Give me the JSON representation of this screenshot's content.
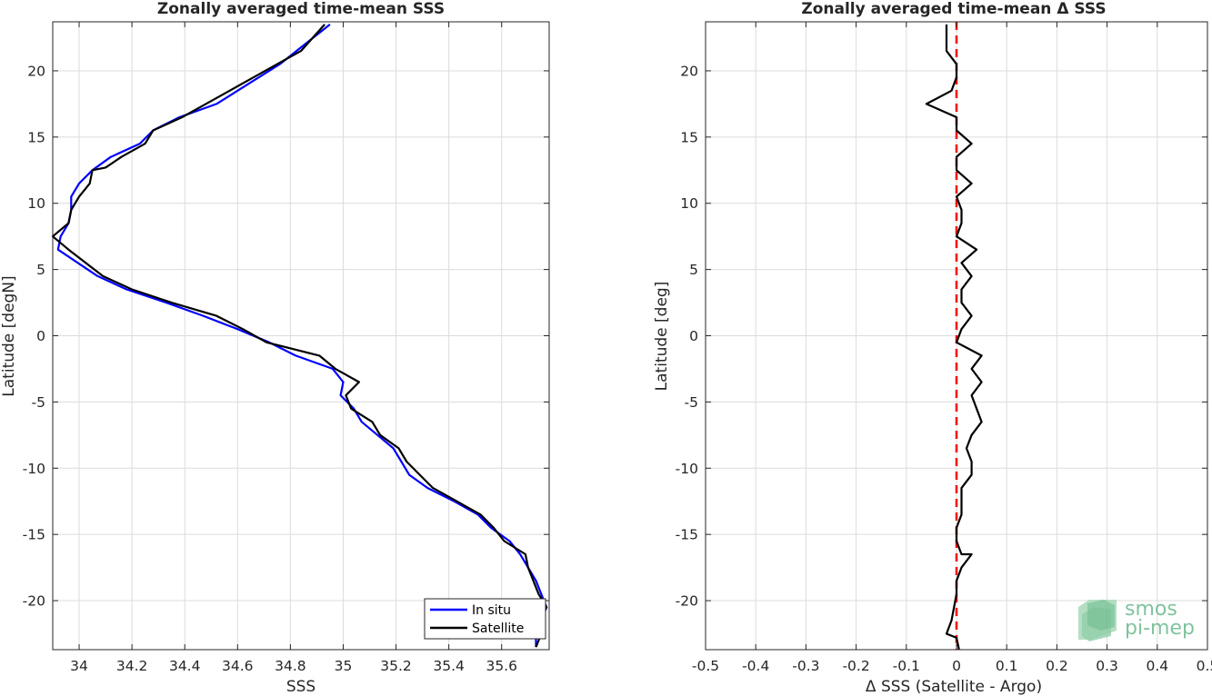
{
  "chart_data": [
    {
      "type": "line",
      "title": "Zonally averaged time-mean SSS",
      "xlabel": "SSS",
      "ylabel": "Latitude [degN]",
      "xlim": [
        33.9,
        35.78
      ],
      "ylim": [
        -23.7,
        23.7
      ],
      "xticks": [
        34,
        34.2,
        34.4,
        34.6,
        34.8,
        35,
        35.2,
        35.4,
        35.6
      ],
      "xtick_labels": [
        "34",
        "34.2",
        "34.4",
        "34.6",
        "34.8",
        "35",
        "35.2",
        "35.4",
        "35.6"
      ],
      "yticks": [
        -20,
        -15,
        -10,
        -5,
        0,
        5,
        10,
        15,
        20
      ],
      "ytick_labels": [
        "-20",
        "-15",
        "-10",
        "-5",
        "0",
        "5",
        "10",
        "15",
        "20"
      ],
      "grid": true,
      "legend_position": "bottom-right",
      "series": [
        {
          "name": "In situ",
          "color": "#0000ff",
          "points": [
            [
              34.95,
              23.5
            ],
            [
              34.76,
              20.5
            ],
            [
              34.6,
              18.5
            ],
            [
              34.52,
              17.5
            ],
            [
              34.38,
              16.5
            ],
            [
              34.28,
              15.5
            ],
            [
              34.23,
              14.5
            ],
            [
              34.12,
              13.5
            ],
            [
              34.05,
              12.5
            ],
            [
              34.0,
              11.5
            ],
            [
              33.97,
              10.5
            ],
            [
              33.97,
              9.5
            ],
            [
              33.96,
              8.5
            ],
            [
              33.93,
              7.5
            ],
            [
              33.92,
              6.5
            ],
            [
              34.07,
              4.5
            ],
            [
              34.18,
              3.5
            ],
            [
              34.33,
              2.5
            ],
            [
              34.47,
              1.5
            ],
            [
              34.6,
              0.5
            ],
            [
              34.72,
              -0.5
            ],
            [
              34.82,
              -1.5
            ],
            [
              34.96,
              -2.5
            ],
            [
              35.0,
              -3.5
            ],
            [
              34.99,
              -4.5
            ],
            [
              35.04,
              -5.5
            ],
            [
              35.07,
              -6.5
            ],
            [
              35.13,
              -7.5
            ],
            [
              35.19,
              -8.5
            ],
            [
              35.22,
              -9.5
            ],
            [
              35.25,
              -10.5
            ],
            [
              35.32,
              -11.5
            ],
            [
              35.42,
              -12.5
            ],
            [
              35.51,
              -13.5
            ],
            [
              35.56,
              -14.5
            ],
            [
              35.63,
              -15.5
            ],
            [
              35.67,
              -16.5
            ],
            [
              35.7,
              -17.5
            ],
            [
              35.73,
              -18.5
            ],
            [
              35.75,
              -19.5
            ],
            [
              35.77,
              -20.5
            ],
            [
              35.75,
              -21.5
            ],
            [
              35.73,
              -22.5
            ],
            [
              35.73,
              -23.5
            ]
          ]
        },
        {
          "name": "Satellite",
          "color": "#000000",
          "points": [
            [
              34.93,
              23.5
            ],
            [
              34.84,
              21.5
            ],
            [
              34.75,
              20.5
            ],
            [
              34.57,
              18.5
            ],
            [
              34.48,
              17.5
            ],
            [
              34.39,
              16.5
            ],
            [
              34.28,
              15.5
            ],
            [
              34.25,
              14.5
            ],
            [
              34.16,
              13.5
            ],
            [
              34.1,
              12.7
            ],
            [
              34.05,
              12.5
            ],
            [
              34.04,
              11.5
            ],
            [
              34.0,
              10.5
            ],
            [
              33.97,
              9.5
            ],
            [
              33.96,
              8.5
            ],
            [
              33.9,
              7.5
            ],
            [
              33.96,
              6.5
            ],
            [
              34.09,
              4.5
            ],
            [
              34.2,
              3.5
            ],
            [
              34.35,
              2.5
            ],
            [
              34.52,
              1.5
            ],
            [
              34.62,
              0.5
            ],
            [
              34.71,
              -0.5
            ],
            [
              34.91,
              -1.5
            ],
            [
              34.97,
              -2.5
            ],
            [
              35.06,
              -3.5
            ],
            [
              35.01,
              -4.5
            ],
            [
              35.03,
              -5.5
            ],
            [
              35.11,
              -6.5
            ],
            [
              35.14,
              -7.5
            ],
            [
              35.21,
              -8.5
            ],
            [
              35.24,
              -9.5
            ],
            [
              35.29,
              -10.5
            ],
            [
              35.34,
              -11.5
            ],
            [
              35.43,
              -12.5
            ],
            [
              35.52,
              -13.5
            ],
            [
              35.57,
              -14.5
            ],
            [
              35.61,
              -15.5
            ],
            [
              35.69,
              -16.5
            ],
            [
              35.7,
              -17.5
            ],
            [
              35.72,
              -18.5
            ],
            [
              35.74,
              -19.5
            ],
            [
              35.77,
              -20.5
            ],
            [
              35.74,
              -21.5
            ],
            [
              35.75,
              -22.5
            ],
            [
              35.73,
              -23.5
            ]
          ]
        }
      ]
    },
    {
      "type": "line",
      "title": "Zonally averaged time-mean Δ SSS",
      "xlabel": "Δ SSS (Satellite - Argo)",
      "ylabel": "Latitude [deg]",
      "xlim": [
        -0.5,
        0.5
      ],
      "ylim": [
        -23.7,
        23.7
      ],
      "xticks": [
        -0.5,
        -0.4,
        -0.3,
        -0.2,
        -0.1,
        0,
        0.1,
        0.2,
        0.3,
        0.4,
        0.5
      ],
      "xtick_labels": [
        "-0.5",
        "-0.4",
        "-0.3",
        "-0.2",
        "-0.1",
        "0",
        "0.1",
        "0.2",
        "0.3",
        "0.4",
        "0.5"
      ],
      "yticks": [
        -20,
        -15,
        -10,
        -5,
        0,
        5,
        10,
        15,
        20
      ],
      "ytick_labels": [
        "-20",
        "-15",
        "-10",
        "-5",
        "0",
        "5",
        "10",
        "15",
        "20"
      ],
      "grid": true,
      "reference_line": {
        "x": 0,
        "color": "#ff0000",
        "style": "dashed"
      },
      "series": [
        {
          "color": "#000000",
          "points": [
            [
              -0.02,
              23.5
            ],
            [
              -0.02,
              21.5
            ],
            [
              0.0,
              20.5
            ],
            [
              0.0,
              19.5
            ],
            [
              -0.01,
              18.5
            ],
            [
              -0.06,
              17.5
            ],
            [
              0.0,
              16.5
            ],
            [
              0.0,
              15.5
            ],
            [
              0.03,
              14.5
            ],
            [
              0.0,
              13.5
            ],
            [
              0.0,
              12.5
            ],
            [
              0.03,
              11.5
            ],
            [
              0.0,
              10.5
            ],
            [
              0.01,
              9.5
            ],
            [
              0.01,
              8.5
            ],
            [
              0.0,
              7.5
            ],
            [
              0.04,
              6.5
            ],
            [
              0.01,
              5.5
            ],
            [
              0.03,
              4.5
            ],
            [
              0.01,
              3.5
            ],
            [
              0.01,
              2.5
            ],
            [
              0.03,
              1.5
            ],
            [
              0.01,
              0.5
            ],
            [
              0.0,
              -0.5
            ],
            [
              0.05,
              -1.5
            ],
            [
              0.03,
              -2.5
            ],
            [
              0.05,
              -3.5
            ],
            [
              0.03,
              -4.5
            ],
            [
              0.04,
              -5.5
            ],
            [
              0.05,
              -6.5
            ],
            [
              0.03,
              -7.5
            ],
            [
              0.02,
              -8.5
            ],
            [
              0.03,
              -9.5
            ],
            [
              0.03,
              -10.5
            ],
            [
              0.01,
              -11.5
            ],
            [
              0.01,
              -12.5
            ],
            [
              0.01,
              -13.5
            ],
            [
              0.0,
              -14.5
            ],
            [
              0.0,
              -15.5
            ],
            [
              0.01,
              -16.5
            ],
            [
              0.03,
              -16.5
            ],
            [
              0.01,
              -17.5
            ],
            [
              0.0,
              -18.5
            ],
            [
              0.0,
              -19.5
            ],
            [
              -0.01,
              -21.5
            ],
            [
              -0.02,
              -22.5
            ],
            [
              0.0,
              -22.8
            ],
            [
              0.005,
              -23.7
            ]
          ]
        }
      ]
    }
  ],
  "logo": {
    "line1": "smos",
    "line2": "pi-mep",
    "color": "#6ab98c"
  }
}
